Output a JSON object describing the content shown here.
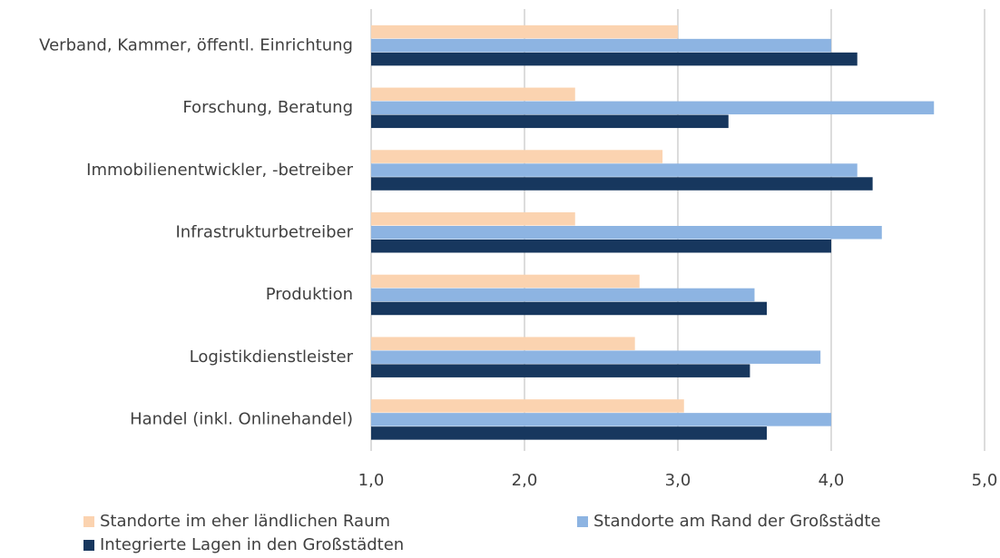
{
  "chart_data": {
    "type": "hbar",
    "categories": [
      "Verband, Kammer, öffentl. Einrichtung",
      "Forschung, Beratung",
      "Immobilienentwickler, -betreiber",
      "Infrastrukturbetreiber",
      "Produktion",
      "Logistikdienstleister",
      "Handel (inkl. Onlinehandel)"
    ],
    "series": [
      {
        "name": "Standorte im eher ländlichen Raum",
        "color": "#fbd3b0",
        "values": [
          3.0,
          2.33,
          2.9,
          2.33,
          2.75,
          2.72,
          3.04
        ]
      },
      {
        "name": "Standorte am Rand der Großstädte",
        "color": "#8db4e2",
        "values": [
          4.0,
          4.67,
          4.17,
          4.33,
          3.5,
          3.93,
          4.0
        ]
      },
      {
        "name": "Integrierte Lagen in den Großstädten",
        "color": "#17375e",
        "values": [
          4.17,
          3.33,
          4.27,
          4.0,
          3.58,
          3.47,
          3.58
        ]
      }
    ],
    "xlim": [
      1,
      5
    ],
    "xticks": [
      {
        "value": 1,
        "label": "1,0"
      },
      {
        "value": 2,
        "label": "2,0"
      },
      {
        "value": 3,
        "label": "3,0"
      },
      {
        "value": 4,
        "label": "4,0"
      },
      {
        "value": 5,
        "label": "5,0"
      }
    ],
    "grid": true,
    "legend": "bottom"
  }
}
